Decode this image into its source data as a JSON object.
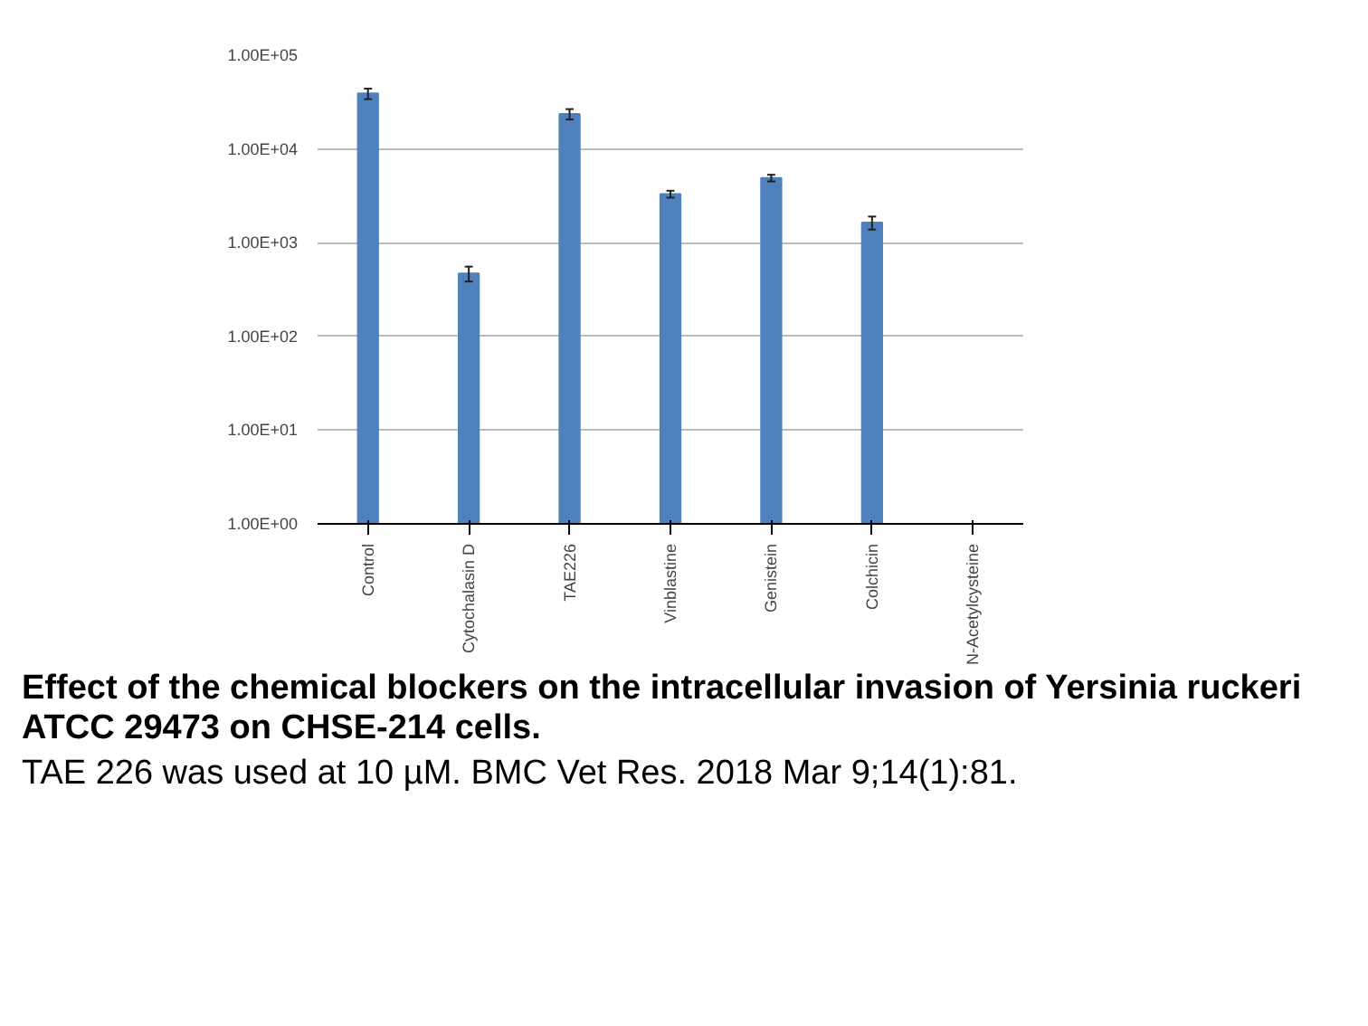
{
  "chart_data": {
    "type": "bar",
    "title": "Effect of the chemical blockers on the intracellular invasion of Yersinia ruckeri ATCC 29473 on CHSE-214 cells.",
    "annotations": [
      "TAE 226 was used at 10 µM. BMC Vet Res. 2018 Mar 9;14(1):81."
    ],
    "categories": [
      "Control",
      "Cytochalasin D",
      "TAE226",
      "Vinblastine",
      "Genistein",
      "Colchicin",
      "N-Acetylcysteine"
    ],
    "series": [
      {
        "color": "#4f81bd",
        "values": [
          39000,
          470,
          23600,
          3300,
          4900,
          1640,
          null
        ],
        "errors": [
          5000,
          85,
          3000,
          280,
          400,
          260,
          null
        ]
      }
    ],
    "log": "y",
    "ylim": [
      1,
      100000
    ],
    "yticks": [
      {
        "value": 1,
        "label": "1.00E+00"
      },
      {
        "value": 10,
        "label": "1.00E+01"
      },
      {
        "value": 100,
        "label": "1.00E+02"
      },
      {
        "value": 1000,
        "label": "1.00E+03"
      },
      {
        "value": 10000,
        "label": "1.00E+04"
      },
      {
        "value": 100000,
        "label": "1.00E+05"
      }
    ],
    "grid": "y"
  }
}
